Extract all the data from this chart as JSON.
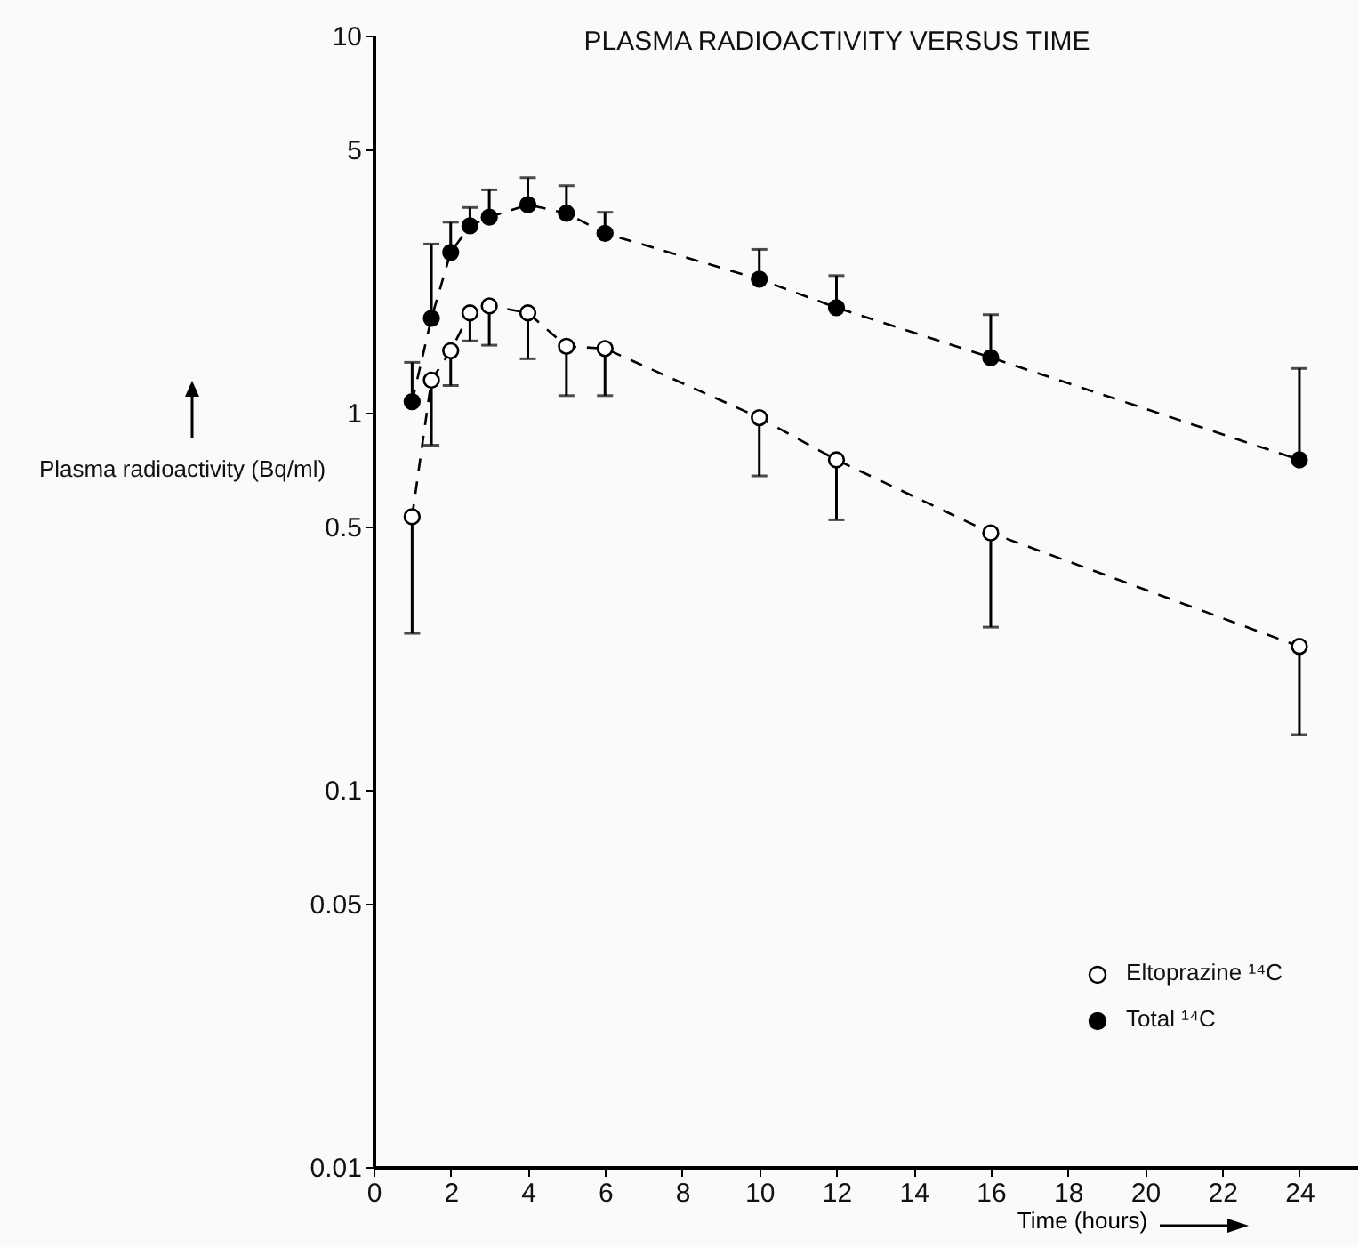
{
  "chart_data": {
    "type": "line",
    "title": "PLASMA RADIOACTIVITY VERSUS TIME",
    "xlabel": "Time (hours)",
    "ylabel": "Plasma radioactivity (Bq/ml)",
    "x": [
      1,
      1.5,
      2,
      2.5,
      3,
      4,
      5,
      6,
      10,
      12,
      16,
      24
    ],
    "series": [
      {
        "name": "Eltoprazine ¹⁴C",
        "color": "#000000",
        "values": [
          0.53,
          1.22,
          1.46,
          1.84,
          1.92,
          1.84,
          1.5,
          1.48,
          0.97,
          0.75,
          0.48,
          0.24
        ],
        "errors": [
          [
            0.26,
            0.53
          ],
          [
            0.82,
            1.22
          ],
          [
            1.18,
            1.46
          ],
          [
            1.55,
            1.84
          ],
          [
            1.51,
            1.92
          ],
          [
            1.39,
            1.84
          ],
          [
            1.11,
            1.5
          ],
          [
            1.11,
            1.48
          ],
          [
            0.68,
            0.97
          ],
          [
            0.52,
            0.75
          ],
          [
            0.27,
            0.48
          ],
          [
            0.14,
            0.24
          ]
        ]
      },
      {
        "name": "Total ¹⁴C",
        "color": "#000000",
        "values": [
          1.07,
          1.78,
          2.66,
          3.13,
          3.3,
          3.56,
          3.38,
          2.99,
          2.26,
          1.9,
          1.4,
          0.75
        ],
        "errors": [
          [
            1.07,
            1.36
          ],
          [
            1.78,
            2.8
          ],
          [
            2.66,
            3.2
          ],
          [
            3.13,
            3.5
          ],
          [
            3.3,
            3.9
          ],
          [
            3.56,
            4.2
          ],
          [
            3.38,
            4.0
          ],
          [
            2.99,
            3.4
          ],
          [
            2.26,
            2.71
          ],
          [
            1.9,
            2.31
          ],
          [
            1.4,
            1.82
          ],
          [
            0.75,
            1.31
          ]
        ]
      }
    ],
    "xlim": [
      0,
      25.5
    ],
    "xticks": [
      0,
      2,
      4,
      6,
      8,
      10,
      12,
      14,
      16,
      18,
      20,
      22,
      24
    ],
    "ylim": [
      0.01,
      10
    ],
    "yticks": [
      0.01,
      0.05,
      0.1,
      0.5,
      1,
      5,
      10
    ],
    "log": "y",
    "grid": false,
    "legend": "bottom right",
    "marker": "circle",
    "line_style": "dashed"
  }
}
